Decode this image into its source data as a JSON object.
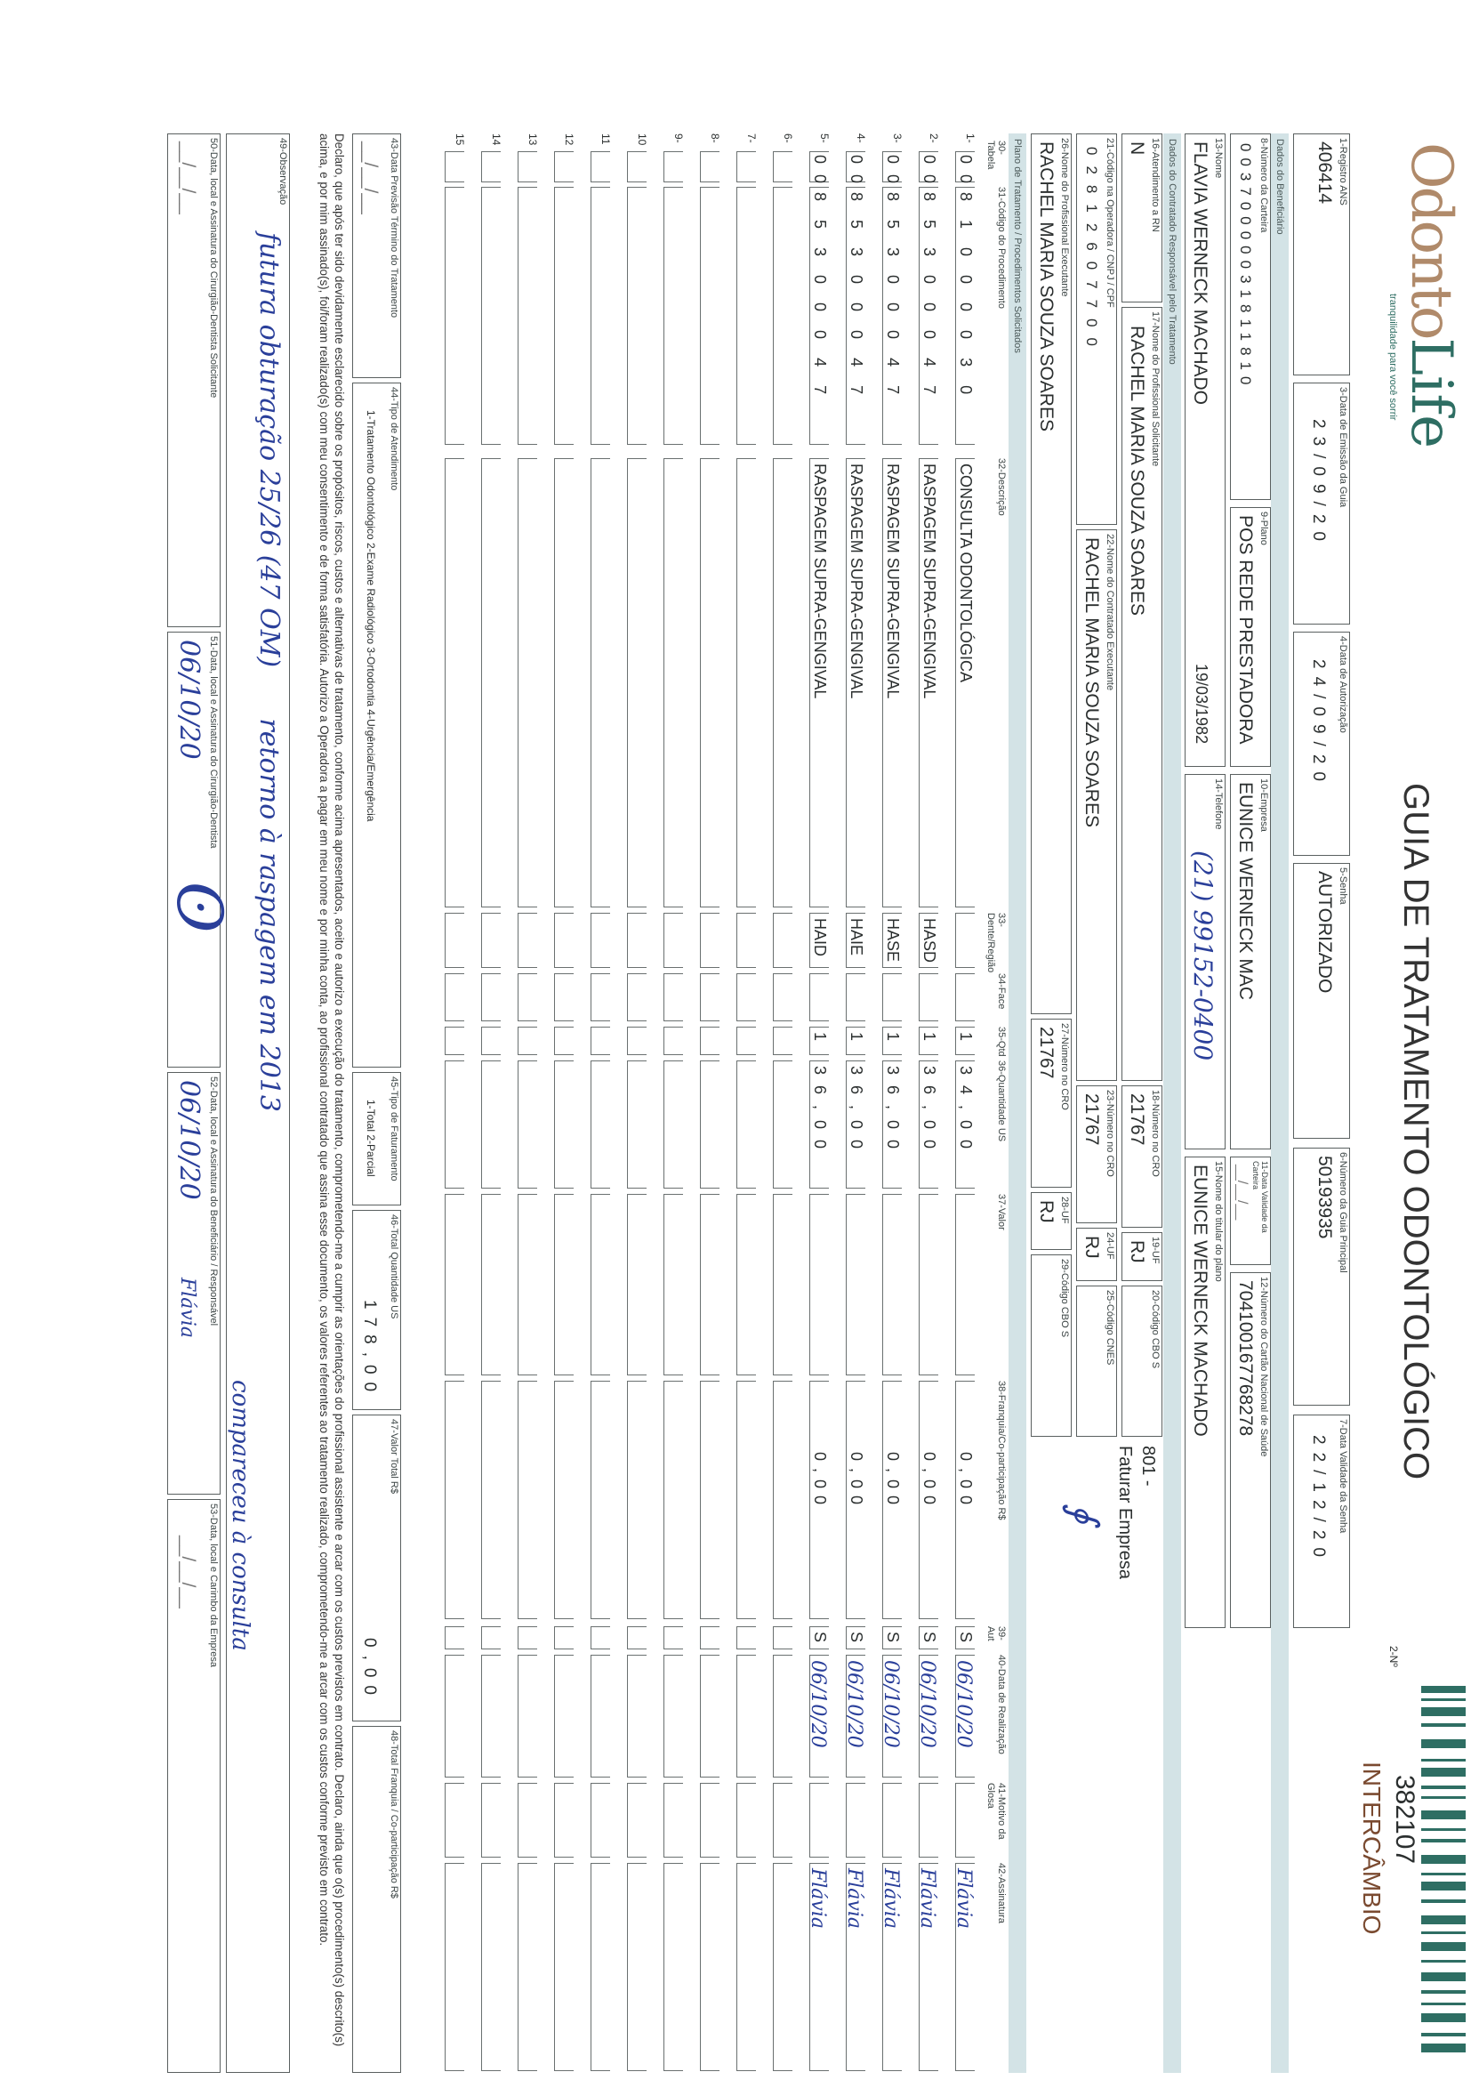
{
  "header": {
    "logo_text_1": "Odonto",
    "logo_text_2": "Life",
    "logo_tagline": "tranquilidade para você sorrir",
    "title": "GUIA DE TRATAMENTO ODONTOLÓGICO",
    "numero_label": "2-Nº",
    "numero": "382107",
    "tipo": "INTERCÂMBIO"
  },
  "guia": {
    "registro_ans": {
      "label": "1-Registro ANS",
      "value": "406414"
    },
    "data_emissao": {
      "label": "3-Data de Emissão da Guia",
      "value": "23/09/20"
    },
    "data_autorizacao": {
      "label": "4-Data de Autorização",
      "value": "24/09/20"
    },
    "senha": {
      "label": "5-Senha",
      "value": "AUTORIZADO"
    },
    "guia_principal": {
      "label": "6-Número da Guia Principal",
      "value": "50193935"
    },
    "validade_senha": {
      "label": "7-Data Validade da Senha",
      "value": "22/12/20"
    }
  },
  "beneficiario": {
    "section": "Dados do Beneficiário",
    "carteira": {
      "label": "8-Número da Carteira",
      "value": "00370000031811810"
    },
    "plano": {
      "label": "9-Plano",
      "value": "POS REDE PRESTADORA"
    },
    "empresa": {
      "label": "10-Empresa",
      "value": "EUNICE WERNECK MAC"
    },
    "validade_carteira": {
      "label": "11-Data Validade da Carteira",
      "value": "__/__/__"
    },
    "cns": {
      "label": "12-Número do Cartão Nacional de Saúde",
      "value": "704100167768278"
    },
    "nome": {
      "label": "13-Nome",
      "value": "FLAVIA WERNECK MACHADO"
    },
    "nascimento": "19/03/1982",
    "telefone": {
      "label": "14-Telefone",
      "value": "(21) 99152-0400"
    },
    "titular": {
      "label": "15-Nome do titular do plano",
      "value": "EUNICE WERNECK MACHADO"
    }
  },
  "contratado": {
    "section": "Dados do Contratado Responsável pelo Tratamento",
    "atendimento_rn": {
      "label": "16-Atendimento a RN",
      "value": "N"
    },
    "prof_solicitante": {
      "label": "17-Nome do Profissional Solicitante",
      "value": "RACHEL MARIA SOUZA SOARES"
    },
    "cro_solicitante": {
      "label": "18-Número no CRO",
      "value": "21767"
    },
    "uf_solicitante": {
      "label": "19-UF",
      "value": "RJ"
    },
    "cbo_solicitante": {
      "label": "20-Código CBO S",
      "value": ""
    },
    "faturar_code": "801 -",
    "faturar": "Faturar Empresa",
    "codigo_operadora": {
      "label": "21-Código na Operadora / CNPJ / CPF",
      "value": "02812607700"
    },
    "contratado_executante": {
      "label": "22-Nome do Contratado Executante",
      "value": "RACHEL MARIA SOUZA SOARES"
    },
    "cro_contratado": {
      "label": "23-Número no CRO",
      "value": "21767"
    },
    "uf_contratado": {
      "label": "24-UF",
      "value": "RJ"
    },
    "cnes": {
      "label": "25-Código CNES",
      "value": ""
    },
    "prof_executante": {
      "label": "26-Nome do Profissional Executante",
      "value": "RACHEL MARIA SOUZA SOARES"
    },
    "cro_executante": {
      "label": "27-Número no CRO",
      "value": "21767"
    },
    "uf_executante": {
      "label": "28-UF",
      "value": "RJ"
    },
    "cbo_executante": {
      "label": "29-Código CBO S",
      "value": ""
    }
  },
  "procedimentos": {
    "section": "Plano de Tratamento / Procedimentos Solicitados",
    "columns": [
      "30-Tabela",
      "31-Código do Procedimento",
      "32-Descrição",
      "33-Dente/Região",
      "34-Face",
      "35-Qtd",
      "36-Quantidade US",
      "37-Valor",
      "38-Franquia/Co-participação R$",
      "39-Aut",
      "40-Data de Realização",
      "41-Motivo da Glosa",
      "42-Assinatura"
    ],
    "rows": [
      {
        "n": "1-",
        "tabela": "00",
        "codigo": "81000030",
        "descricao": "CONSULTA ODONTOLÓGICA",
        "dente": "",
        "face": "",
        "qtd": "1",
        "us": "34,00",
        "valor": "",
        "franquia": "0,00",
        "aut": "S",
        "data": "06/10/20",
        "glosa": "",
        "assinatura": "Flávia"
      },
      {
        "n": "2-",
        "tabela": "00",
        "codigo": "85300047",
        "descricao": "RASPAGEM SUPRA-GENGIVAL",
        "dente": "HASD",
        "face": "",
        "qtd": "1",
        "us": "36,00",
        "valor": "",
        "franquia": "0,00",
        "aut": "S",
        "data": "06/10/20",
        "glosa": "",
        "assinatura": "Flávia"
      },
      {
        "n": "3-",
        "tabela": "00",
        "codigo": "85300047",
        "descricao": "RASPAGEM SUPRA-GENGIVAL",
        "dente": "HASE",
        "face": "",
        "qtd": "1",
        "us": "36,00",
        "valor": "",
        "franquia": "0,00",
        "aut": "S",
        "data": "06/10/20",
        "glosa": "",
        "assinatura": "Flávia"
      },
      {
        "n": "4-",
        "tabela": "00",
        "codigo": "85300047",
        "descricao": "RASPAGEM SUPRA-GENGIVAL",
        "dente": "HAIE",
        "face": "",
        "qtd": "1",
        "us": "36,00",
        "valor": "",
        "franquia": "0,00",
        "aut": "S",
        "data": "06/10/20",
        "glosa": "",
        "assinatura": "Flávia"
      },
      {
        "n": "5-",
        "tabela": "00",
        "codigo": "85300047",
        "descricao": "RASPAGEM SUPRA-GENGIVAL",
        "dente": "HAID",
        "face": "",
        "qtd": "1",
        "us": "36,00",
        "valor": "",
        "franquia": "0,00",
        "aut": "S",
        "data": "06/10/20",
        "glosa": "",
        "assinatura": "Flávia"
      },
      {
        "n": "6-"
      },
      {
        "n": "7-"
      },
      {
        "n": "8-"
      },
      {
        "n": "9-"
      },
      {
        "n": "10"
      },
      {
        "n": "11"
      },
      {
        "n": "12"
      },
      {
        "n": "13"
      },
      {
        "n": "14"
      },
      {
        "n": "15"
      }
    ]
  },
  "totais": {
    "previsao_termino": {
      "label": "43-Data Previsão Término do Tratamento",
      "value": "__/__/__"
    },
    "tipo_atendimento": {
      "label": "44-Tipo de Atendimento",
      "options": "1-Tratamento Odontológico  2-Exame Radiológico  3-Ortodontia  4-Urgência/Emergência"
    },
    "tipo_faturamento": {
      "label": "45-Tipo de Faturamento",
      "options": "1-Total  2-Parcial"
    },
    "total_us": {
      "label": "46-Total Quantidade US",
      "value": "178,00"
    },
    "valor_total": {
      "label": "47-Valor Total R$",
      "value": "0,00"
    },
    "total_franquia": {
      "label": "48-Total Franquia / Co-participação R$",
      "value": ""
    }
  },
  "declaracao": "Declaro, que após ter sido devidamente esclarecido sobre os propósitos, riscos, custos e alternativas de tratamento, conforme acima apresentados, aceito e autorizo a execução do tratamento, comprometendo-me a cumprir as orientações do profissional assistente e arcar com os custos previstos em contrato. Declaro, ainda que o(s) procedimento(s) descrito(s) acima, e por mim assinado(s), foi/foram realizado(s) com meu consentimento e de forma satisfatória. Autorizo a Operadora a pagar em meu nome e por minha conta, ao profissional contratado que assina esse documento, os valores referentes ao tratamento realizado, comprometendo-me a arcar com os custos conforme previsto em contrato.",
  "observacao": {
    "label": "49-Observação",
    "line1": "futura obturação 25/26 (47 OM)      retorno à raspagem em 2013",
    "line2": "compareceu à consulta"
  },
  "assinaturas": {
    "solicitante": {
      "label": "50-Data, local e Assinatura do Cirurgião-Dentista Solicitante",
      "value": "__/__/__"
    },
    "executante": {
      "label": "51-Data, local e Assinatura do Cirurgião-Dentista",
      "value": "06/10/20"
    },
    "beneficiario": {
      "label": "52-Data, local e Assinatura do Beneficiário / Responsável",
      "value": "06/10/20"
    },
    "empresa": {
      "label": "53-Data, local e Carimbo da Empresa",
      "value": "__/__/__"
    }
  },
  "colors": {
    "ink": "#2b2f2f",
    "band": "#d3e3e6",
    "brand_brown": "#b08a6a",
    "brand_teal": "#2e6e63",
    "pen": "#2a3f9a"
  }
}
